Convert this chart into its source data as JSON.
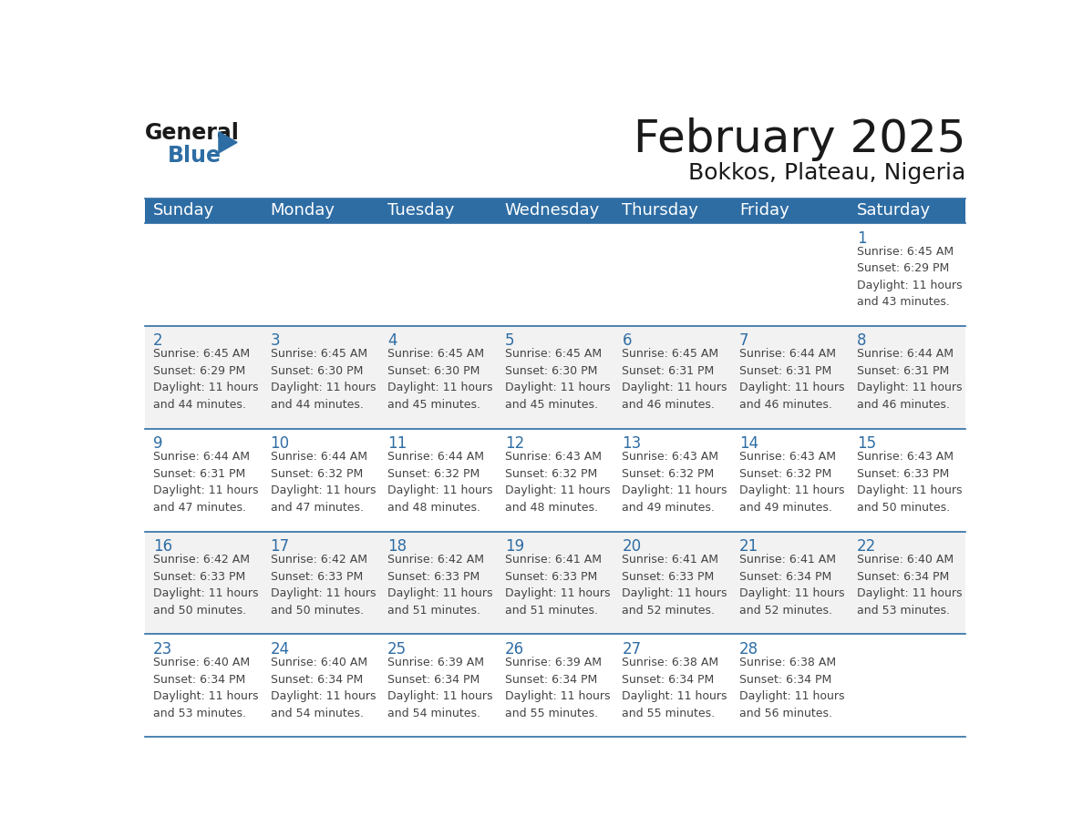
{
  "title": "February 2025",
  "subtitle": "Bokkos, Plateau, Nigeria",
  "header_bg": "#2E6DA4",
  "header_text_color": "#FFFFFF",
  "cell_border_color": "#2E6DA4",
  "day_number_color": "#2E6DA4",
  "detail_text_color": "#444444",
  "bg_color": "#FFFFFF",
  "days_of_week": [
    "Sunday",
    "Monday",
    "Tuesday",
    "Wednesday",
    "Thursday",
    "Friday",
    "Saturday"
  ],
  "weeks": [
    [
      {
        "day": null,
        "info": null
      },
      {
        "day": null,
        "info": null
      },
      {
        "day": null,
        "info": null
      },
      {
        "day": null,
        "info": null
      },
      {
        "day": null,
        "info": null
      },
      {
        "day": null,
        "info": null
      },
      {
        "day": 1,
        "info": "Sunrise: 6:45 AM\nSunset: 6:29 PM\nDaylight: 11 hours\nand 43 minutes."
      }
    ],
    [
      {
        "day": 2,
        "info": "Sunrise: 6:45 AM\nSunset: 6:29 PM\nDaylight: 11 hours\nand 44 minutes."
      },
      {
        "day": 3,
        "info": "Sunrise: 6:45 AM\nSunset: 6:30 PM\nDaylight: 11 hours\nand 44 minutes."
      },
      {
        "day": 4,
        "info": "Sunrise: 6:45 AM\nSunset: 6:30 PM\nDaylight: 11 hours\nand 45 minutes."
      },
      {
        "day": 5,
        "info": "Sunrise: 6:45 AM\nSunset: 6:30 PM\nDaylight: 11 hours\nand 45 minutes."
      },
      {
        "day": 6,
        "info": "Sunrise: 6:45 AM\nSunset: 6:31 PM\nDaylight: 11 hours\nand 46 minutes."
      },
      {
        "day": 7,
        "info": "Sunrise: 6:44 AM\nSunset: 6:31 PM\nDaylight: 11 hours\nand 46 minutes."
      },
      {
        "day": 8,
        "info": "Sunrise: 6:44 AM\nSunset: 6:31 PM\nDaylight: 11 hours\nand 46 minutes."
      }
    ],
    [
      {
        "day": 9,
        "info": "Sunrise: 6:44 AM\nSunset: 6:31 PM\nDaylight: 11 hours\nand 47 minutes."
      },
      {
        "day": 10,
        "info": "Sunrise: 6:44 AM\nSunset: 6:32 PM\nDaylight: 11 hours\nand 47 minutes."
      },
      {
        "day": 11,
        "info": "Sunrise: 6:44 AM\nSunset: 6:32 PM\nDaylight: 11 hours\nand 48 minutes."
      },
      {
        "day": 12,
        "info": "Sunrise: 6:43 AM\nSunset: 6:32 PM\nDaylight: 11 hours\nand 48 minutes."
      },
      {
        "day": 13,
        "info": "Sunrise: 6:43 AM\nSunset: 6:32 PM\nDaylight: 11 hours\nand 49 minutes."
      },
      {
        "day": 14,
        "info": "Sunrise: 6:43 AM\nSunset: 6:32 PM\nDaylight: 11 hours\nand 49 minutes."
      },
      {
        "day": 15,
        "info": "Sunrise: 6:43 AM\nSunset: 6:33 PM\nDaylight: 11 hours\nand 50 minutes."
      }
    ],
    [
      {
        "day": 16,
        "info": "Sunrise: 6:42 AM\nSunset: 6:33 PM\nDaylight: 11 hours\nand 50 minutes."
      },
      {
        "day": 17,
        "info": "Sunrise: 6:42 AM\nSunset: 6:33 PM\nDaylight: 11 hours\nand 50 minutes."
      },
      {
        "day": 18,
        "info": "Sunrise: 6:42 AM\nSunset: 6:33 PM\nDaylight: 11 hours\nand 51 minutes."
      },
      {
        "day": 19,
        "info": "Sunrise: 6:41 AM\nSunset: 6:33 PM\nDaylight: 11 hours\nand 51 minutes."
      },
      {
        "day": 20,
        "info": "Sunrise: 6:41 AM\nSunset: 6:33 PM\nDaylight: 11 hours\nand 52 minutes."
      },
      {
        "day": 21,
        "info": "Sunrise: 6:41 AM\nSunset: 6:34 PM\nDaylight: 11 hours\nand 52 minutes."
      },
      {
        "day": 22,
        "info": "Sunrise: 6:40 AM\nSunset: 6:34 PM\nDaylight: 11 hours\nand 53 minutes."
      }
    ],
    [
      {
        "day": 23,
        "info": "Sunrise: 6:40 AM\nSunset: 6:34 PM\nDaylight: 11 hours\nand 53 minutes."
      },
      {
        "day": 24,
        "info": "Sunrise: 6:40 AM\nSunset: 6:34 PM\nDaylight: 11 hours\nand 54 minutes."
      },
      {
        "day": 25,
        "info": "Sunrise: 6:39 AM\nSunset: 6:34 PM\nDaylight: 11 hours\nand 54 minutes."
      },
      {
        "day": 26,
        "info": "Sunrise: 6:39 AM\nSunset: 6:34 PM\nDaylight: 11 hours\nand 55 minutes."
      },
      {
        "day": 27,
        "info": "Sunrise: 6:38 AM\nSunset: 6:34 PM\nDaylight: 11 hours\nand 55 minutes."
      },
      {
        "day": 28,
        "info": "Sunrise: 6:38 AM\nSunset: 6:34 PM\nDaylight: 11 hours\nand 56 minutes."
      },
      {
        "day": null,
        "info": null
      }
    ]
  ],
  "logo_general_color": "#1a1a1a",
  "logo_blue_color": "#2E6DA4",
  "title_fontsize": 36,
  "subtitle_fontsize": 18,
  "header_fontsize": 13,
  "day_num_fontsize": 12,
  "detail_fontsize": 9
}
